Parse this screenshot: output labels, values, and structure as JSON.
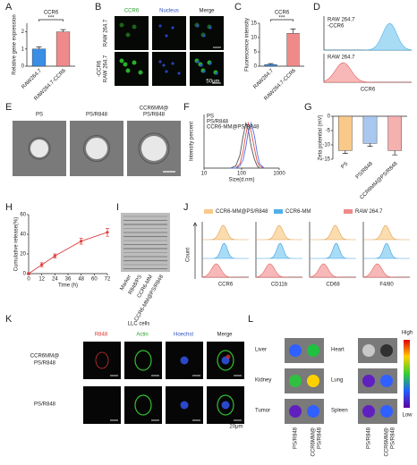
{
  "panels": [
    "A",
    "B",
    "C",
    "D",
    "E",
    "F",
    "G",
    "H",
    "I",
    "J",
    "K",
    "L"
  ],
  "chart_data": [
    {
      "type": "bar",
      "title": "CCR6",
      "y_label": "Relative gene expression",
      "categories": [
        "RAW264.7",
        "RAW264.7-CCR6"
      ],
      "values": [
        1.0,
        2.0
      ],
      "errors": [
        0.12,
        0.13
      ],
      "colors": [
        "#3a8ee6",
        "#f08a8a"
      ],
      "ylim": [
        0,
        2.5
      ],
      "yticks": [
        0,
        1,
        2
      ],
      "annotation": "***"
    },
    {
      "type": "bar",
      "title": "CCR6",
      "y_label": "Fluorescence intensity",
      "categories": [
        "RAW264.7",
        "RAW264.7-CCR6"
      ],
      "values": [
        0.6,
        11.5
      ],
      "errors": [
        0.3,
        1.5
      ],
      "colors": [
        "#3a8ee6",
        "#f08a8a"
      ],
      "ylim": [
        0,
        15
      ],
      "yticks": [
        0,
        5,
        10,
        15
      ],
      "annotation": "***"
    },
    {
      "type": "bar",
      "y_label": "Zeta potential (mV)",
      "categories": [
        "PS",
        "PS/R848",
        "CCR6MM@PS/R848"
      ],
      "values": [
        -12,
        -9.5,
        -12
      ],
      "errors": [
        1,
        1,
        1.5
      ],
      "colors": [
        "#f9c98a",
        "#a9c8f0",
        "#f5b0b0"
      ],
      "ylim": [
        -15,
        0
      ],
      "yticks": [
        0,
        -5,
        -10,
        -15
      ]
    },
    {
      "type": "line",
      "log_x": true,
      "x_label": "Size(d.nm)",
      "y_label": "Intensity percent",
      "x": [
        50,
        70,
        90,
        110,
        130,
        150,
        180,
        220,
        260,
        300,
        400
      ],
      "series": [
        {
          "name": "PS",
          "color": "#555555",
          "values": [
            0,
            1,
            6,
            15,
            21,
            18,
            10,
            4,
            1,
            0,
            0
          ]
        },
        {
          "name": "PS/R848",
          "color": "#e05050",
          "values": [
            0,
            0,
            2,
            8,
            16,
            21,
            17,
            9,
            3,
            1,
            0
          ]
        },
        {
          "name": "CCR6-MM@PS/R848",
          "color": "#5070e0",
          "values": [
            0,
            0,
            1,
            4,
            10,
            17,
            21,
            15,
            7,
            2,
            0
          ]
        }
      ],
      "xlim": [
        10,
        1000
      ],
      "xticks": [
        10,
        100,
        1000
      ],
      "ylim": [
        0,
        25
      ]
    },
    {
      "type": "line",
      "x_label": "Time (h)",
      "y_label": "Cumulative release(%)",
      "x": [
        0,
        12,
        24,
        48,
        72
      ],
      "series": [
        {
          "color": "#e04040",
          "values": [
            0,
            9,
            18,
            33,
            42
          ],
          "errors": [
            1,
            2,
            2,
            3,
            4
          ]
        }
      ],
      "xlim": [
        0,
        72
      ],
      "xticks": [
        0,
        12,
        24,
        36,
        48,
        60,
        72
      ],
      "ylim": [
        0,
        60
      ],
      "yticks": [
        0,
        20,
        40,
        60
      ]
    }
  ],
  "B": {
    "columns": [
      {
        "text": "CCR6",
        "color": "#2aa02a"
      },
      {
        "text": "Nucleus",
        "color": "#3050c0"
      },
      {
        "text": "Merge",
        "color": "#222222"
      }
    ],
    "rows": [
      [
        "RAW 264.7"
      ],
      [
        "RAW 264.7",
        "-CCR6"
      ]
    ],
    "scale": "50μm"
  },
  "D": {
    "labels": [
      [
        "RAW 264.7",
        "-CCR6"
      ],
      [
        "RAW 264.7"
      ]
    ],
    "x_label": "CCR6"
  },
  "E": {
    "labels": [
      [
        "PS"
      ],
      [
        "PS/R848"
      ],
      [
        "CCR6MM@",
        "PS/R848"
      ]
    ]
  },
  "I": {
    "lanes": [
      "Marker",
      "R848/PS",
      "CCR6-MM",
      "CCR6-MM@PS/R848"
    ]
  },
  "J": {
    "legend": [
      {
        "name": "CCR6-MM@PS/R848",
        "color": "#f9c98a"
      },
      {
        "name": "CCR6-MM",
        "color": "#4fb0e8"
      },
      {
        "name": "RAW 264.7",
        "color": "#f08a8a"
      }
    ],
    "markers": [
      "CCR6",
      "CD11b",
      "CD68",
      "F4/80"
    ],
    "y_label": "Count"
  },
  "K": {
    "title": "LLC cells",
    "columns": [
      {
        "text": "R848",
        "color": "#e03030"
      },
      {
        "text": "Actin",
        "color": "#2aa02a"
      },
      {
        "text": "Hoechst",
        "color": "#3050c0"
      },
      {
        "text": "Merge",
        "color": "#222222"
      }
    ],
    "rows": [
      [
        "CCR6MM@",
        "PS/R848"
      ],
      [
        "PS/R848"
      ]
    ],
    "scale": "20μm"
  },
  "L": {
    "organs": [
      "Liver",
      "Heart",
      "Kidney",
      "Lung",
      "Tumor",
      "Spleen"
    ],
    "scale": [
      "High",
      "Low"
    ],
    "groups": [
      [
        "PS/R848"
      ],
      [
        "CCR6MM@",
        "PS/R848"
      ]
    ]
  }
}
